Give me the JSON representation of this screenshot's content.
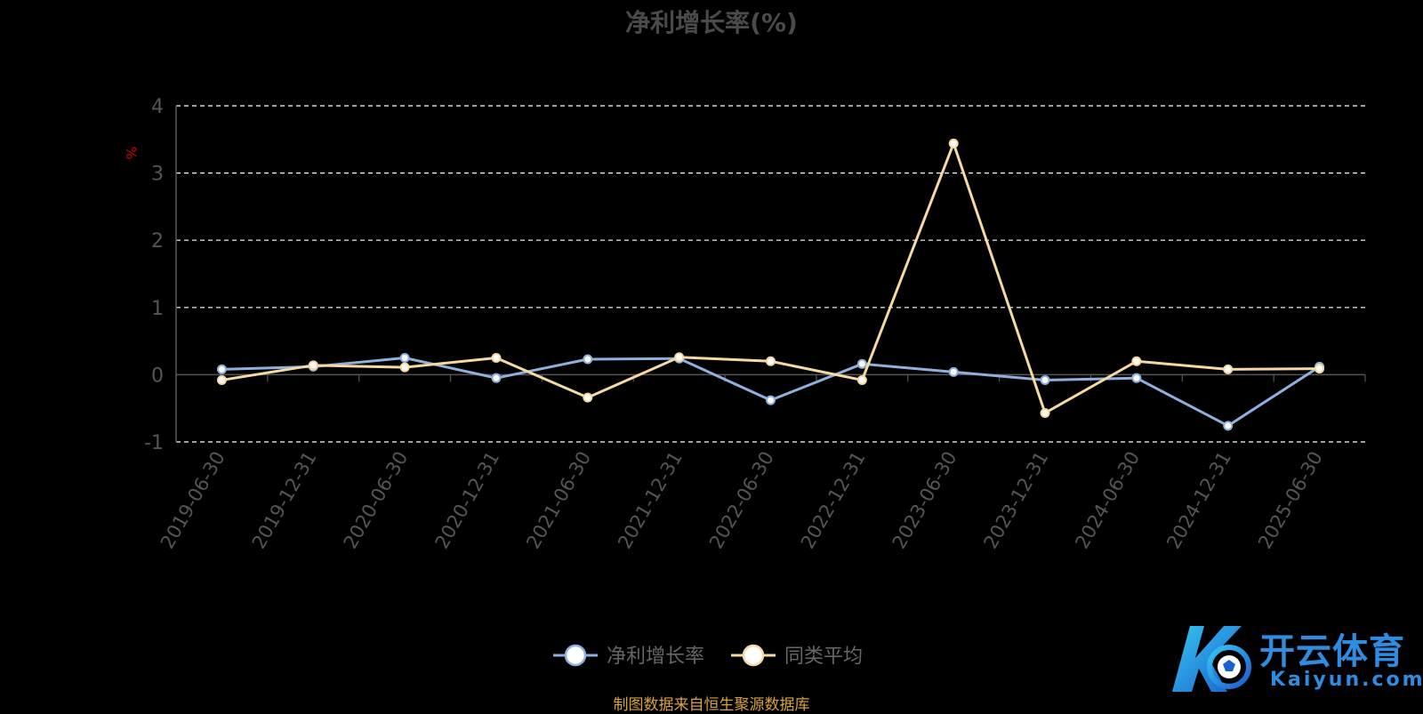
{
  "title": "净利增长率(%)",
  "source_note": "制图数据来自恒生聚源数据库",
  "watermark": {
    "brand_cn": "开云体育",
    "brand_en": "Kaiyun.com"
  },
  "colors": {
    "background": "#000000",
    "series_1": "#8fb0dd",
    "series_2": "#f5d9a0",
    "grid": "#ffffff",
    "axis": "#555555",
    "tick_label": "#555555",
    "unit_label": "#cc0000",
    "source_note": "#d9a334",
    "legend_text": "#666666",
    "point_fill": "#ffffff"
  },
  "chart_data": {
    "type": "line",
    "title": "净利增长率(%)",
    "ylabel": "%",
    "xlabel": "",
    "ylim": [
      -1,
      4
    ],
    "yticks": [
      "-1",
      "0",
      "1",
      "2",
      "3",
      "4"
    ],
    "grid": true,
    "legend_position": "bottom-center",
    "categories": [
      "2019-06-30",
      "2019-12-31",
      "2020-06-30",
      "2020-12-31",
      "2021-06-30",
      "2021-12-31",
      "2022-06-30",
      "2022-12-31",
      "2023-06-30",
      "2023-12-31",
      "2024-06-30",
      "2024-12-31",
      "2025-06-30"
    ],
    "series": [
      {
        "name": "净利增长率",
        "values": [
          0.08,
          0.12,
          0.25,
          -0.05,
          0.23,
          0.24,
          -0.38,
          0.16,
          0.04,
          -0.08,
          -0.05,
          -0.76,
          0.12
        ]
      },
      {
        "name": "同类平均",
        "values": [
          -0.08,
          0.14,
          0.11,
          0.25,
          -0.34,
          0.26,
          0.2,
          -0.08,
          3.44,
          -0.57,
          0.2,
          0.08,
          0.09
        ]
      }
    ]
  }
}
